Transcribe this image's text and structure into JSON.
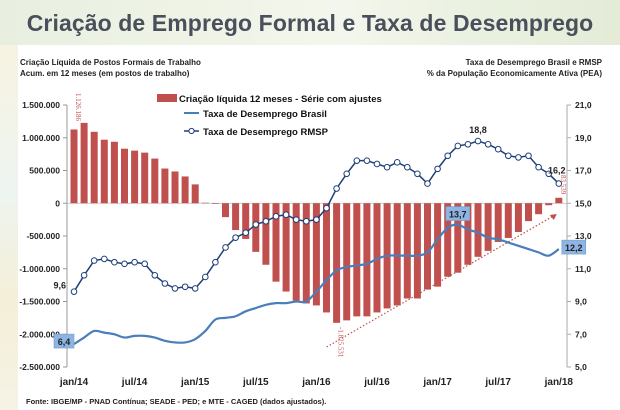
{
  "page": {
    "title": "Criação de Emprego Formal e Taxa de Desemprego",
    "subtitle_left": [
      "Criação Líquida de Postos Formais de Trabalho",
      "Acum. em 12 meses (em postos de trabalho)"
    ],
    "subtitle_right": [
      "Taxa de Desemprego Brasil e RMSP",
      "% da População  Economicamente  Ativa (PEA)"
    ],
    "source": "Fonte: IBGE/MP - PNAD Contínua; SEADE - PED; e MTE - CAGED (dados ajustados)."
  },
  "colors": {
    "bars": "#c0504d",
    "brasil": "#4a7ebb",
    "rmsp": "#1f3f7a",
    "label_box": "#8db4e2",
    "trend": "#c0504d"
  },
  "chart_data": {
    "type": "bar+line",
    "title": "Criação de Emprego Formal e Taxa de Desemprego",
    "x_tick_labels": [
      "jan/14",
      "jul/14",
      "jan/15",
      "jul/15",
      "jan/16",
      "jul/16",
      "jan/17",
      "jul/17",
      "jan/18"
    ],
    "months_count": 49,
    "y_left": {
      "min": -2500000,
      "max": 1500000,
      "ticks": [
        1500000,
        1000000,
        500000,
        0,
        -500000,
        -1000000,
        -1500000,
        -2000000,
        -2500000
      ],
      "tick_labels": [
        "1.500.000",
        "1.000.000",
        "500.000",
        "0",
        "-500.000",
        "-1.000.000",
        "-1.500.000",
        "-2.000.000",
        "-2.500.000"
      ]
    },
    "y_right": {
      "min": 5.0,
      "max": 21.0,
      "ticks": [
        21,
        19,
        17,
        15,
        13,
        11,
        9,
        7,
        5
      ],
      "tick_labels": [
        "21,0",
        "19,0",
        "17,0",
        "15,0",
        "13,0",
        "11,0",
        "9,0",
        "7,0",
        "5,0"
      ]
    },
    "legend": [
      "Criação líquida 12 meses - Série com ajustes",
      "Taxa de Desemprego Brasil",
      "Taxa de Desemprego RMSP"
    ],
    "series": [
      {
        "name": "Criação líquida 12 meses - Série com ajustes",
        "type": "bar",
        "axis": "left",
        "values": [
          1126186,
          1227000,
          1091000,
          970000,
          939000,
          833000,
          803000,
          773000,
          682000,
          530000,
          485000,
          409000,
          288000,
          8000,
          -5000,
          -212000,
          -409000,
          -545000,
          -742000,
          -939000,
          -1197000,
          -1348000,
          -1485000,
          -1530000,
          -1560000,
          -1667000,
          -1825531,
          -1788000,
          -1727000,
          -1727000,
          -1667000,
          -1606000,
          -1560000,
          -1454000,
          -1454000,
          -1318000,
          -1273000,
          -1121000,
          -1060000,
          -939000,
          -818000,
          -727000,
          -591000,
          -530000,
          -439000,
          -273000,
          -167000,
          -30000,
          83539
        ]
      },
      {
        "name": "Taxa de Desemprego Brasil",
        "type": "line",
        "axis": "right",
        "values": [
          6.4,
          6.8,
          7.2,
          7.1,
          7.0,
          6.8,
          6.9,
          6.9,
          6.8,
          6.6,
          6.5,
          6.5,
          6.7,
          7.2,
          7.9,
          8.0,
          8.1,
          8.4,
          8.6,
          8.8,
          8.9,
          8.9,
          9.0,
          9.0,
          9.6,
          10.3,
          10.9,
          11.1,
          11.2,
          11.3,
          11.6,
          11.8,
          11.8,
          11.8,
          11.8,
          12.0,
          12.8,
          13.5,
          13.7,
          13.4,
          13.2,
          12.9,
          12.8,
          12.6,
          12.4,
          12.2,
          12.0,
          11.8,
          12.2
        ]
      },
      {
        "name": "Taxa de Desemprego RMSP",
        "type": "line",
        "axis": "right",
        "values": [
          9.6,
          10.6,
          11.5,
          11.6,
          11.4,
          11.3,
          11.4,
          11.3,
          10.6,
          10.1,
          9.8,
          9.9,
          9.8,
          10.5,
          11.4,
          12.3,
          12.9,
          13.2,
          13.7,
          13.9,
          14.2,
          14.3,
          14.0,
          13.9,
          14.0,
          14.7,
          15.9,
          16.8,
          17.6,
          17.6,
          17.4,
          17.2,
          17.5,
          17.2,
          16.8,
          16.2,
          17.1,
          17.9,
          18.5,
          18.6,
          18.8,
          18.6,
          18.3,
          17.9,
          17.8,
          17.9,
          17.2,
          16.8,
          16.2
        ]
      }
    ],
    "annotations": {
      "bar_first": {
        "index": 0,
        "text": "1.126.186"
      },
      "bar_min": {
        "index": 26,
        "text": "-1.825.531"
      },
      "bar_last": {
        "index": 48,
        "text": "83.539"
      },
      "brasil_first": {
        "index": 0,
        "text": "6,4"
      },
      "brasil_peak": {
        "index": 38,
        "text": "13,7"
      },
      "brasil_last": {
        "index": 48,
        "text": "12,2"
      },
      "rmsp_first": {
        "index": 0,
        "text": "9,6"
      },
      "rmsp_peak": {
        "index": 40,
        "text": "18,8"
      },
      "rmsp_last": {
        "index": 48,
        "text": "16,2"
      },
      "trend_arrow": {
        "from_index": 26,
        "to_index": 48,
        "style": "dotted"
      }
    }
  }
}
